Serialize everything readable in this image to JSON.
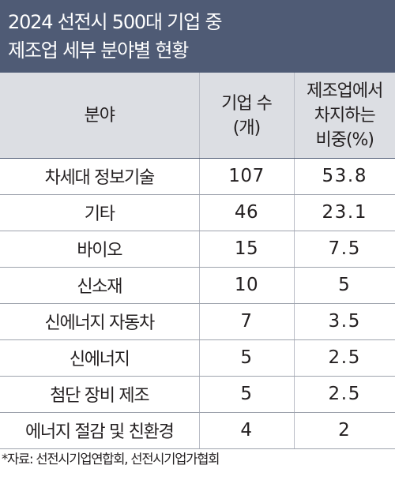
{
  "title": {
    "line1": "2024 선전시 500대 기업 중",
    "line2": "제조업 세부 분야별 현황"
  },
  "table": {
    "headers": {
      "field": "분야",
      "count_lines": [
        "기업 수",
        "(개)"
      ],
      "ratio_lines": [
        "제조업에서",
        "차지하는",
        "비중(%)"
      ]
    },
    "rows": [
      {
        "field": "차세대 정보기술",
        "count": "107",
        "ratio": "53.8"
      },
      {
        "field": "기타",
        "count": "46",
        "ratio": "23.1"
      },
      {
        "field": "바이오",
        "count": "15",
        "ratio": "7.5"
      },
      {
        "field": "신소재",
        "count": "10",
        "ratio": "5"
      },
      {
        "field": "신에너지 자동차",
        "count": "7",
        "ratio": "3.5"
      },
      {
        "field": "신에너지",
        "count": "5",
        "ratio": "2.5"
      },
      {
        "field": "첨단 장비 제조",
        "count": "5",
        "ratio": "2.5"
      },
      {
        "field": "에너지 절감 및 친환경",
        "count": "4",
        "ratio": "2"
      }
    ]
  },
  "source": "*자료: 선전시기업연합회, 선전시기업가협회",
  "colors": {
    "title_background": "#4f5b75",
    "header_background": "#dcdee3",
    "text": "#231f20"
  }
}
